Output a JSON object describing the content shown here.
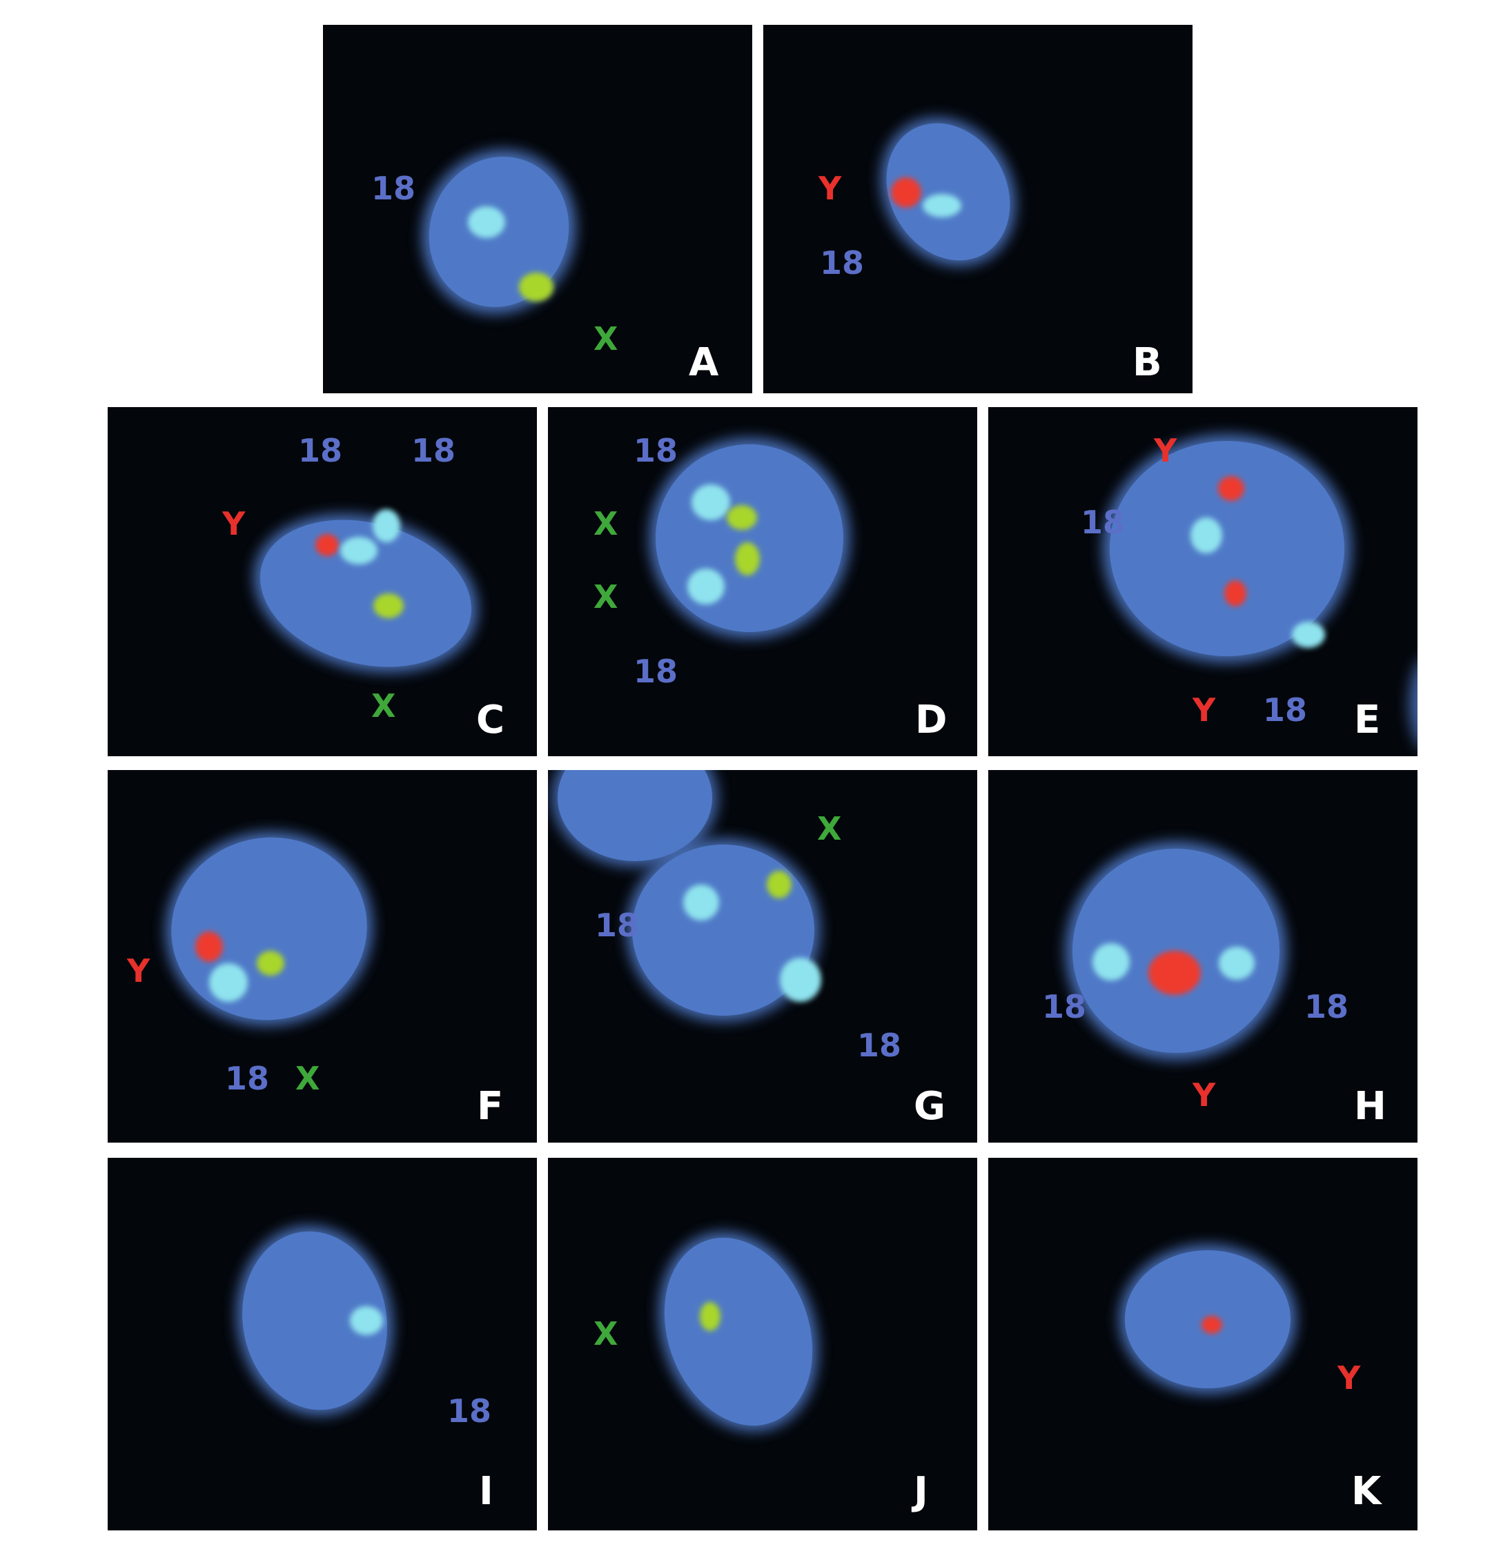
{
  "figure": {
    "panels": [
      {
        "letter": "A",
        "labels": [
          {
            "text": "18",
            "probe": "18"
          },
          {
            "text": "X",
            "probe": "X"
          }
        ]
      },
      {
        "letter": "B",
        "labels": [
          {
            "text": "Y",
            "probe": "Y"
          },
          {
            "text": "18",
            "probe": "18"
          }
        ]
      },
      {
        "letter": "C",
        "labels": [
          {
            "text": "18",
            "probe": "18"
          },
          {
            "text": "18",
            "probe": "18"
          },
          {
            "text": "Y",
            "probe": "Y"
          },
          {
            "text": "X",
            "probe": "X"
          }
        ]
      },
      {
        "letter": "D",
        "labels": [
          {
            "text": "18",
            "probe": "18"
          },
          {
            "text": "X",
            "probe": "X"
          },
          {
            "text": "X",
            "probe": "X"
          },
          {
            "text": "18",
            "probe": "18"
          }
        ]
      },
      {
        "letter": "E",
        "labels": [
          {
            "text": "Y",
            "probe": "Y"
          },
          {
            "text": "18",
            "probe": "18"
          },
          {
            "text": "Y",
            "probe": "Y"
          },
          {
            "text": "18",
            "probe": "18"
          }
        ]
      },
      {
        "letter": "F",
        "labels": [
          {
            "text": "Y",
            "probe": "Y"
          },
          {
            "text": "18",
            "probe": "18"
          },
          {
            "text": "X",
            "probe": "X"
          }
        ]
      },
      {
        "letter": "G",
        "labels": [
          {
            "text": "X",
            "probe": "X"
          },
          {
            "text": "18",
            "probe": "18"
          },
          {
            "text": "18",
            "probe": "18"
          }
        ]
      },
      {
        "letter": "H",
        "labels": [
          {
            "text": "18",
            "probe": "18"
          },
          {
            "text": "18",
            "probe": "18"
          },
          {
            "text": "Y",
            "probe": "Y"
          }
        ]
      },
      {
        "letter": "I",
        "labels": [
          {
            "text": "18",
            "probe": "18"
          }
        ]
      },
      {
        "letter": "J",
        "labels": [
          {
            "text": "X",
            "probe": "X"
          }
        ]
      },
      {
        "letter": "K",
        "labels": [
          {
            "text": "Y",
            "probe": "Y"
          }
        ]
      }
    ],
    "colors": {
      "background": "#03060b",
      "nucleus": "#4f79c7",
      "probe_18": "#8fe3ee",
      "probe_X": "#a9d62c",
      "probe_Y": "#ee3b2d",
      "label_18": "#5b6fc8",
      "label_X": "#3fa83a",
      "label_Y": "#e8312c",
      "panel_letter": "#ffffff"
    }
  }
}
